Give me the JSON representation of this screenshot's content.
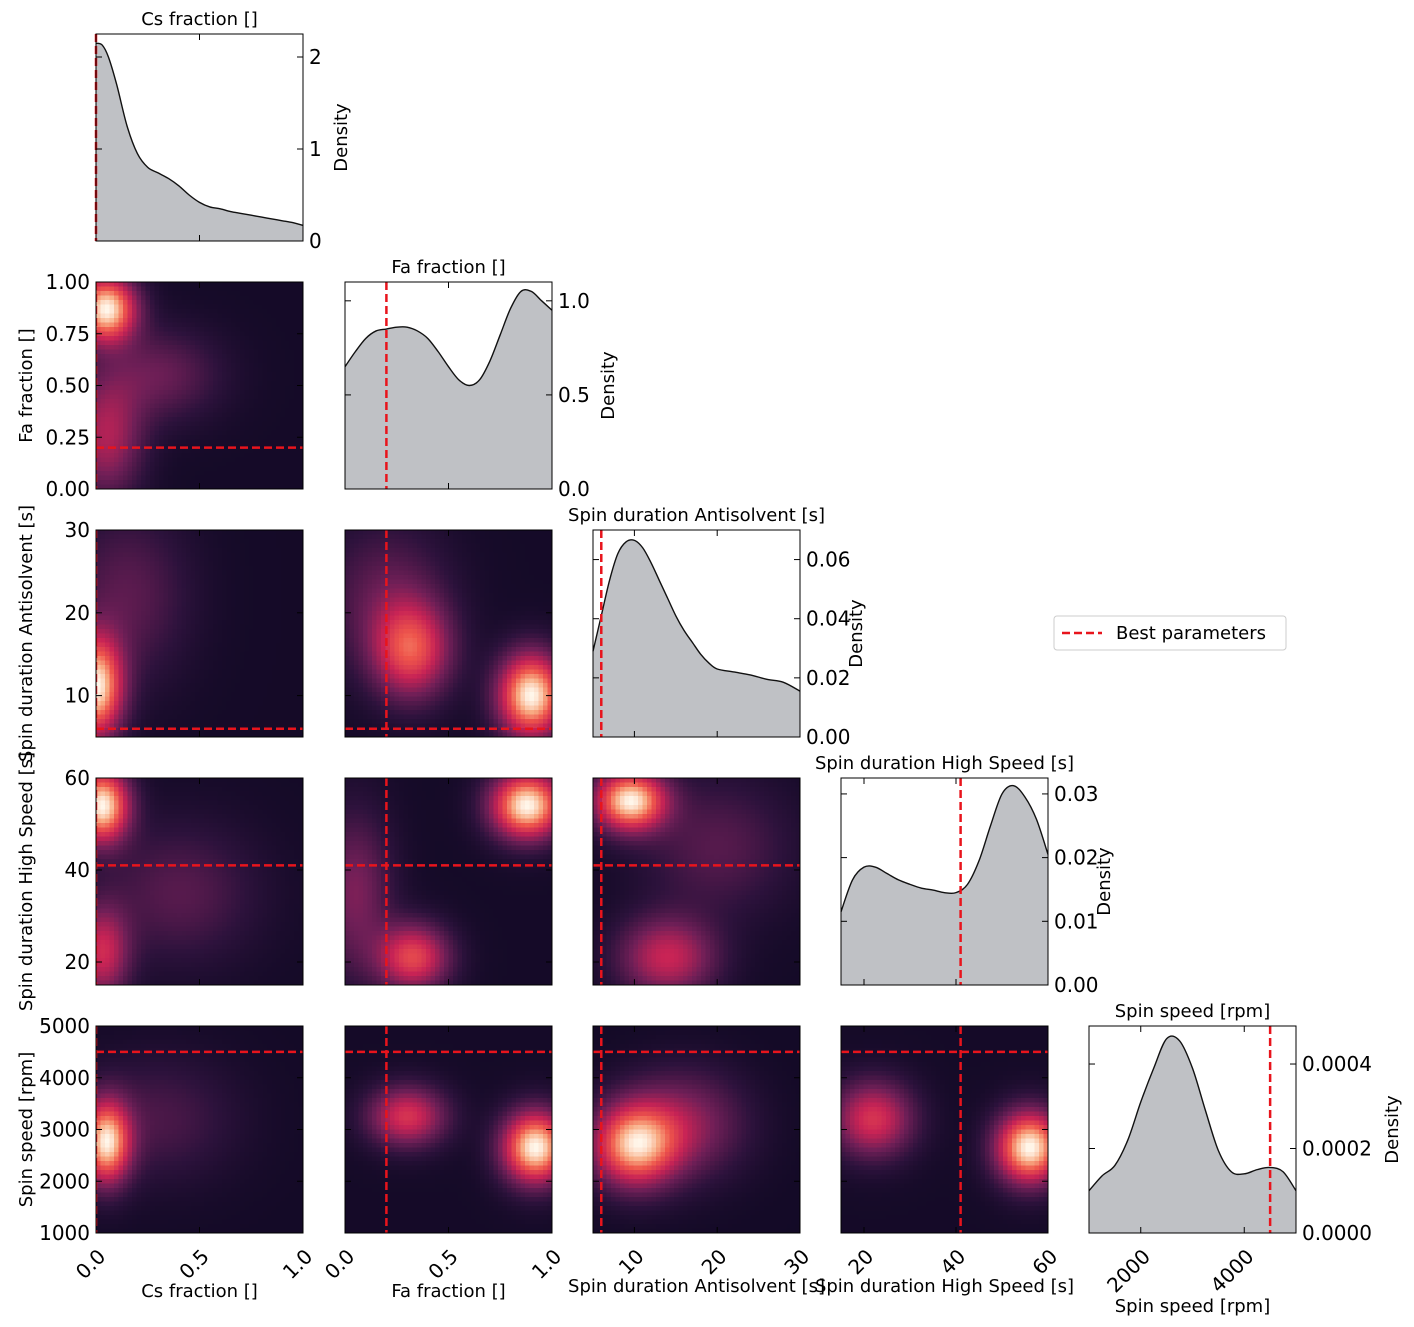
{
  "chart_data": {
    "type": "corner_plot",
    "colors": {
      "fill": "#bfc1c5",
      "line": "#111111",
      "best": "#e8141c",
      "heat_low": "#07061c",
      "heat_high": "#fff6ea"
    },
    "parameters": [
      {
        "name": "Cs fraction []",
        "range": [
          0,
          1
        ],
        "best": 0.0
      },
      {
        "name": "Fa fraction []",
        "range": [
          0,
          1
        ],
        "best": 0.2
      },
      {
        "name": "Spin duration Antisolvent [s]",
        "range": [
          5,
          30
        ],
        "best": 6
      },
      {
        "name": "Spin duration High Speed [s]",
        "range": [
          15,
          60
        ],
        "best": 41
      },
      {
        "name": "Spin speed [rpm]",
        "range": [
          1000,
          5000
        ],
        "best": 4500
      }
    ],
    "y_ticks": [
      null,
      {
        "values": [
          0.0,
          0.25,
          0.5,
          0.75,
          1.0
        ],
        "labels": [
          "0.00",
          "0.25",
          "0.50",
          "0.75",
          "1.00"
        ]
      },
      {
        "values": [
          10,
          20,
          30
        ],
        "labels": [
          "10",
          "20",
          "30"
        ]
      },
      {
        "values": [
          20,
          40,
          60
        ],
        "labels": [
          "20",
          "40",
          "60"
        ]
      },
      {
        "values": [
          1000,
          2000,
          3000,
          4000,
          5000
        ],
        "labels": [
          "1000",
          "2000",
          "3000",
          "4000",
          "5000"
        ]
      }
    ],
    "x_ticks": [
      {
        "values": [
          0,
          0.5,
          1.0
        ],
        "labels": [
          "0.0",
          "0.5",
          "1.0"
        ]
      },
      {
        "values": [
          0,
          0.5,
          1.0
        ],
        "labels": [
          "0.0",
          "0.5",
          "1.0"
        ]
      },
      {
        "values": [
          10,
          20,
          30
        ],
        "labels": [
          "10",
          "20",
          "30"
        ]
      },
      {
        "values": [
          20,
          40,
          60
        ],
        "labels": [
          "20",
          "40",
          "60"
        ]
      },
      {
        "values": [
          2000,
          4000
        ],
        "labels": [
          "2000",
          "4000"
        ]
      }
    ],
    "marginals": [
      {
        "title": "Cs fraction []",
        "ylabel": "Density",
        "ylim": [
          0,
          2.25
        ],
        "ticks": [
          0,
          1,
          2
        ],
        "tick_labels": [
          "0",
          "1",
          "2"
        ],
        "x": [
          0,
          0.03,
          0.06,
          0.1,
          0.15,
          0.2,
          0.25,
          0.3,
          0.35,
          0.4,
          0.45,
          0.5,
          0.55,
          0.6,
          0.65,
          0.7,
          0.75,
          0.8,
          0.85,
          0.9,
          0.95,
          1.0
        ],
        "y": [
          2.15,
          2.13,
          2.0,
          1.7,
          1.25,
          0.95,
          0.8,
          0.74,
          0.68,
          0.6,
          0.5,
          0.42,
          0.37,
          0.35,
          0.32,
          0.3,
          0.28,
          0.26,
          0.24,
          0.22,
          0.2,
          0.17
        ]
      },
      {
        "title": "Fa fraction []",
        "ylabel": "Density",
        "ylim": [
          0,
          1.1
        ],
        "ticks": [
          0,
          0.5,
          1.0
        ],
        "tick_labels": [
          "0.0",
          "0.5",
          "1.0"
        ],
        "x": [
          0,
          0.05,
          0.1,
          0.15,
          0.2,
          0.25,
          0.3,
          0.35,
          0.4,
          0.45,
          0.5,
          0.55,
          0.6,
          0.65,
          0.7,
          0.75,
          0.8,
          0.85,
          0.9,
          0.95,
          1.0
        ],
        "y": [
          0.65,
          0.73,
          0.8,
          0.84,
          0.85,
          0.86,
          0.86,
          0.84,
          0.8,
          0.73,
          0.65,
          0.58,
          0.55,
          0.58,
          0.68,
          0.82,
          0.96,
          1.05,
          1.05,
          1.0,
          0.95
        ]
      },
      {
        "title": "Spin duration Antisolvent [s]",
        "ylabel": "Density",
        "ylim": [
          0,
          0.07
        ],
        "ticks": [
          0,
          0.02,
          0.04,
          0.06
        ],
        "tick_labels": [
          "0.00",
          "0.02",
          "0.04",
          "0.06"
        ],
        "x": [
          5,
          6,
          7,
          8,
          9,
          10,
          11,
          12,
          13,
          14,
          15,
          16,
          17,
          18,
          19,
          20,
          22,
          24,
          26,
          28,
          30
        ],
        "y": [
          0.029,
          0.041,
          0.053,
          0.062,
          0.066,
          0.0665,
          0.064,
          0.059,
          0.053,
          0.047,
          0.041,
          0.036,
          0.032,
          0.028,
          0.025,
          0.023,
          0.022,
          0.021,
          0.0195,
          0.0185,
          0.0155
        ]
      },
      {
        "title": "Spin duration High Speed [s]",
        "ylabel": "Density",
        "ylim": [
          0,
          0.0325
        ],
        "ticks": [
          0,
          0.01,
          0.02,
          0.03
        ],
        "tick_labels": [
          "0.00",
          "0.01",
          "0.02",
          "0.03"
        ],
        "x": [
          15,
          17.5,
          20,
          22.5,
          25,
          27.5,
          30,
          32.5,
          35,
          37.5,
          40,
          42.5,
          45,
          47.5,
          50,
          52.5,
          55,
          57.5,
          60
        ],
        "y": [
          0.0115,
          0.0165,
          0.0185,
          0.0185,
          0.0175,
          0.0165,
          0.0158,
          0.0152,
          0.0149,
          0.0145,
          0.0145,
          0.0158,
          0.0195,
          0.025,
          0.03,
          0.0313,
          0.0295,
          0.026,
          0.0205
        ]
      },
      {
        "title": "Spin speed [rpm]",
        "ylabel": "Density",
        "ylim": [
          0,
          0.00049
        ],
        "ticks": [
          0,
          0.0002,
          0.0004
        ],
        "tick_labels": [
          "0.0000",
          "0.0002",
          "0.0004"
        ],
        "x": [
          1000,
          1250,
          1500,
          1750,
          2000,
          2250,
          2500,
          2750,
          3000,
          3250,
          3500,
          3750,
          4000,
          4250,
          4500,
          4750,
          5000
        ],
        "y": [
          0.0001,
          0.000135,
          0.00016,
          0.00022,
          0.00031,
          0.00039,
          0.00046,
          0.000455,
          0.00039,
          0.00029,
          0.000195,
          0.000145,
          0.00014,
          0.00015,
          0.000155,
          0.000145,
          0.0001
        ]
      }
    ],
    "joint_blobs": {
      "1-0": [
        {
          "x": 0.05,
          "y": 0.87,
          "sx": 0.1,
          "sy": 0.11,
          "w": 1.0
        },
        {
          "x": 0.3,
          "y": 0.55,
          "sx": 0.2,
          "sy": 0.15,
          "w": 0.25
        },
        {
          "x": 0.05,
          "y": 0.25,
          "sx": 0.12,
          "sy": 0.2,
          "w": 0.42
        }
      ],
      "2-0": [
        {
          "x": 0.0,
          "y": 11,
          "sx": 0.09,
          "sy": 4.2,
          "w": 1.0
        },
        {
          "x": 0.15,
          "y": 22,
          "sx": 0.2,
          "sy": 7,
          "w": 0.22
        }
      ],
      "2-1": [
        {
          "x": 0.9,
          "y": 10,
          "sx": 0.11,
          "sy": 3.5,
          "w": 1.0
        },
        {
          "x": 0.32,
          "y": 15.5,
          "sx": 0.13,
          "sy": 4,
          "w": 0.62
        },
        {
          "x": 0.2,
          "y": 22,
          "sx": 0.2,
          "sy": 6,
          "w": 0.22
        }
      ],
      "3-0": [
        {
          "x": 0.03,
          "y": 54,
          "sx": 0.09,
          "sy": 5.5,
          "w": 1.0
        },
        {
          "x": 0.03,
          "y": 22,
          "sx": 0.09,
          "sy": 7,
          "w": 0.5
        },
        {
          "x": 0.4,
          "y": 35,
          "sx": 0.25,
          "sy": 10,
          "w": 0.2
        }
      ],
      "3-1": [
        {
          "x": 0.88,
          "y": 54,
          "sx": 0.12,
          "sy": 5,
          "w": 1.0
        },
        {
          "x": 0.33,
          "y": 21,
          "sx": 0.12,
          "sy": 5,
          "w": 0.62
        },
        {
          "x": 0.05,
          "y": 35,
          "sx": 0.12,
          "sy": 12,
          "w": 0.3
        }
      ],
      "3-2": [
        {
          "x": 9.5,
          "y": 55,
          "sx": 3,
          "sy": 4.5,
          "w": 1.0
        },
        {
          "x": 14,
          "y": 21,
          "sx": 4,
          "sy": 6,
          "w": 0.5
        },
        {
          "x": 20,
          "y": 45,
          "sx": 6,
          "sy": 10,
          "w": 0.2
        }
      ],
      "4-0": [
        {
          "x": 0.05,
          "y": 2750,
          "sx": 0.08,
          "sy": 550,
          "w": 1.0
        },
        {
          "x": 0.3,
          "y": 3200,
          "sx": 0.25,
          "sy": 800,
          "w": 0.18
        }
      ],
      "4-1": [
        {
          "x": 0.92,
          "y": 2650,
          "sx": 0.11,
          "sy": 480,
          "w": 1.0
        },
        {
          "x": 0.3,
          "y": 3250,
          "sx": 0.13,
          "sy": 400,
          "w": 0.55
        }
      ],
      "4-2": [
        {
          "x": 10,
          "y": 2700,
          "sx": 3.5,
          "sy": 550,
          "w": 1.0
        },
        {
          "x": 16,
          "y": 3100,
          "sx": 5,
          "sy": 700,
          "w": 0.4
        }
      ],
      "4-3": [
        {
          "x": 56,
          "y": 2650,
          "sx": 5,
          "sy": 480,
          "w": 1.0
        },
        {
          "x": 22,
          "y": 3200,
          "sx": 6,
          "sy": 500,
          "w": 0.55
        }
      ]
    },
    "legend": {
      "label": "Best parameters",
      "position": "right-middle"
    }
  }
}
